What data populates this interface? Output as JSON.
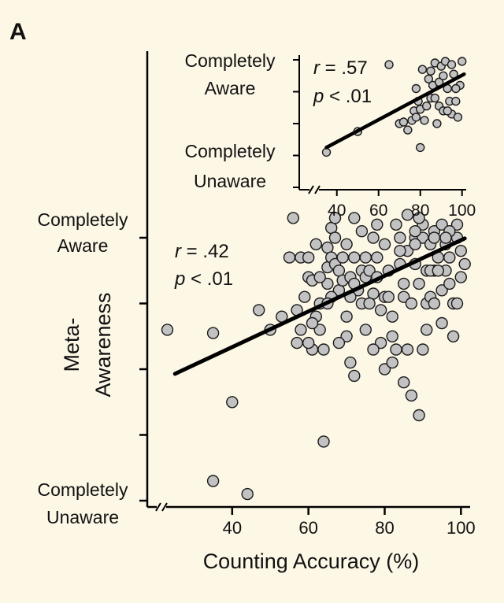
{
  "panel_label": "A",
  "chart_data": [
    {
      "type": "scatter",
      "name": "main",
      "xlabel": "Counting Accuracy (%)",
      "ylabel_lines": [
        "Meta-",
        "Awareness"
      ],
      "xlim": [
        20,
        102
      ],
      "ylim": [
        1,
        5
      ],
      "x_ticks": [
        40,
        60,
        80,
        100
      ],
      "y_ticks": [
        1,
        2,
        3,
        4,
        5
      ],
      "y_top_label": [
        "Completely",
        "Aware"
      ],
      "y_bottom_label": [
        "Completely",
        "Unaware"
      ],
      "stats": {
        "r_sym": "r",
        "r_val": " = .42",
        "p_sym": "p",
        "p_val": " < .01"
      },
      "fit_line": {
        "x": [
          25,
          101
        ],
        "y": [
          2.93,
          4.99
        ]
      },
      "points": [
        [
          23,
          3.6
        ],
        [
          35,
          3.55
        ],
        [
          40,
          2.5
        ],
        [
          35,
          1.3
        ],
        [
          44,
          1.1
        ],
        [
          47,
          3.9
        ],
        [
          53,
          3.8
        ],
        [
          50,
          3.6
        ],
        [
          55,
          4.7
        ],
        [
          57,
          3.4
        ],
        [
          57,
          3.9
        ],
        [
          58,
          4.7
        ],
        [
          58,
          3.6
        ],
        [
          59,
          4.1
        ],
        [
          60,
          4.7
        ],
        [
          60,
          4.4
        ],
        [
          61,
          4.35
        ],
        [
          61,
          3.3
        ],
        [
          62,
          4.9
        ],
        [
          62,
          3.8
        ],
        [
          63,
          4.0
        ],
        [
          63,
          3.6
        ],
        [
          64,
          1.9
        ],
        [
          64,
          3.3
        ],
        [
          65,
          4.3
        ],
        [
          65,
          4.55
        ],
        [
          65,
          4.85
        ],
        [
          66,
          5.15
        ],
        [
          66,
          4.7
        ],
        [
          67,
          5.0
        ],
        [
          67,
          5.3
        ],
        [
          67,
          4.6
        ],
        [
          68,
          4.5
        ],
        [
          68,
          4.2
        ],
        [
          69,
          4.35
        ],
        [
          69,
          4.7
        ],
        [
          70,
          4.9
        ],
        [
          70,
          3.5
        ],
        [
          71,
          3.1
        ],
        [
          71,
          4.4
        ],
        [
          72,
          4.7
        ],
        [
          72,
          5.3
        ],
        [
          72,
          2.9
        ],
        [
          73,
          4.2
        ],
        [
          74,
          4.0
        ],
        [
          74,
          4.5
        ],
        [
          75,
          3.6
        ],
        [
          75,
          4.4
        ],
        [
          76,
          4.5
        ],
        [
          77,
          4.15
        ],
        [
          77,
          5.0
        ],
        [
          78,
          4.7
        ],
        [
          78,
          4.4
        ],
        [
          79,
          3.4
        ],
        [
          80,
          4.9
        ],
        [
          80,
          4.1
        ],
        [
          81,
          4.5
        ],
        [
          81,
          4.1
        ],
        [
          82,
          3.8
        ],
        [
          82,
          3.5
        ],
        [
          83,
          5.2
        ],
        [
          83,
          3.3
        ],
        [
          84,
          5.0
        ],
        [
          84,
          4.6
        ],
        [
          85,
          4.1
        ],
        [
          85,
          4.3
        ],
        [
          86,
          5.35
        ],
        [
          86,
          4.8
        ],
        [
          87,
          4.0
        ],
        [
          87,
          2.6
        ],
        [
          88,
          5.0
        ],
        [
          88,
          4.6
        ],
        [
          89,
          4.3
        ],
        [
          89,
          2.3
        ],
        [
          90,
          5.2
        ],
        [
          90,
          5.0
        ],
        [
          91,
          4.5
        ],
        [
          91,
          4.0
        ],
        [
          91,
          3.6
        ],
        [
          92,
          4.9
        ],
        [
          92,
          4.1
        ],
        [
          93,
          5.1
        ],
        [
          93,
          4.5
        ],
        [
          94,
          4.7
        ],
        [
          95,
          5.2
        ],
        [
          95,
          3.7
        ],
        [
          95,
          4.2
        ],
        [
          96,
          4.9
        ],
        [
          96,
          4.5
        ],
        [
          97,
          4.3
        ],
        [
          98,
          4.0
        ],
        [
          99,
          5.0
        ],
        [
          99,
          5.2
        ],
        [
          100,
          4.8
        ],
        [
          100,
          4.4
        ],
        [
          101,
          4.6
        ],
        [
          56,
          5.3
        ],
        [
          61,
          3.7
        ],
        [
          63,
          4.4
        ],
        [
          66,
          4.1
        ],
        [
          68,
          3.4
        ],
        [
          71,
          4.1
        ],
        [
          74,
          5.1
        ],
        [
          76,
          4.0
        ],
        [
          79,
          3.9
        ],
        [
          80,
          3.0
        ],
        [
          82,
          3.1
        ],
        [
          84,
          4.8
        ],
        [
          86,
          3.3
        ],
        [
          88,
          5.1
        ],
        [
          90,
          3.3
        ],
        [
          93,
          4.0
        ],
        [
          97,
          4.7
        ],
        [
          98,
          3.5
        ],
        [
          99,
          4.0
        ],
        [
          70,
          3.8
        ],
        [
          75,
          4.7
        ],
        [
          78,
          5.2
        ],
        [
          85,
          2.8
        ],
        [
          92,
          4.5
        ],
        [
          93,
          5.0
        ],
        [
          97,
          5.1
        ],
        [
          65,
          4.0
        ],
        [
          72,
          4.3
        ],
        [
          94,
          4.5
        ],
        [
          88,
          4.9
        ],
        [
          89,
          5.3
        ],
        [
          60,
          3.4
        ],
        [
          77,
          3.3
        ],
        [
          96,
          5.0
        ]
      ]
    },
    {
      "type": "scatter",
      "name": "inset",
      "xlim": [
        25,
        102
      ],
      "ylim": [
        1,
        5
      ],
      "x_ticks": [
        40,
        60,
        80,
        100
      ],
      "y_ticks": [
        1,
        2,
        3,
        4,
        5
      ],
      "y_top_label": [
        "Completely",
        "Aware"
      ],
      "y_bottom_label": [
        "Completely",
        "Unaware"
      ],
      "stats": {
        "r_sym": "r",
        "r_val": " = .57",
        "p_sym": "p",
        "p_val": " < .01"
      },
      "fit_line": {
        "x": [
          35,
          101
        ],
        "y": [
          2.25,
          4.55
        ]
      },
      "points": [
        [
          35,
          2.1
        ],
        [
          65,
          4.85
        ],
        [
          50,
          2.75
        ],
        [
          70,
          3.0
        ],
        [
          72,
          3.05
        ],
        [
          74,
          2.8
        ],
        [
          76,
          3.1
        ],
        [
          77,
          3.4
        ],
        [
          78,
          4.1
        ],
        [
          78,
          3.2
        ],
        [
          79,
          3.7
        ],
        [
          80,
          2.25
        ],
        [
          80,
          3.45
        ],
        [
          81,
          4.7
        ],
        [
          82,
          3.1
        ],
        [
          83,
          3.55
        ],
        [
          84,
          4.4
        ],
        [
          85,
          4.65
        ],
        [
          85,
          3.8
        ],
        [
          86,
          4.2
        ],
        [
          87,
          3.8
        ],
        [
          87,
          4.9
        ],
        [
          88,
          3.0
        ],
        [
          89,
          3.55
        ],
        [
          89,
          4.3
        ],
        [
          90,
          4.8
        ],
        [
          91,
          4.5
        ],
        [
          91,
          3.4
        ],
        [
          92,
          4.95
        ],
        [
          93,
          4.1
        ],
        [
          94,
          3.7
        ],
        [
          95,
          4.85
        ],
        [
          95,
          3.3
        ],
        [
          96,
          4.55
        ],
        [
          97,
          3.7
        ],
        [
          98,
          3.2
        ],
        [
          99,
          4.2
        ],
        [
          100,
          4.95
        ],
        [
          97,
          4.1
        ],
        [
          93,
          3.4
        ]
      ]
    }
  ]
}
